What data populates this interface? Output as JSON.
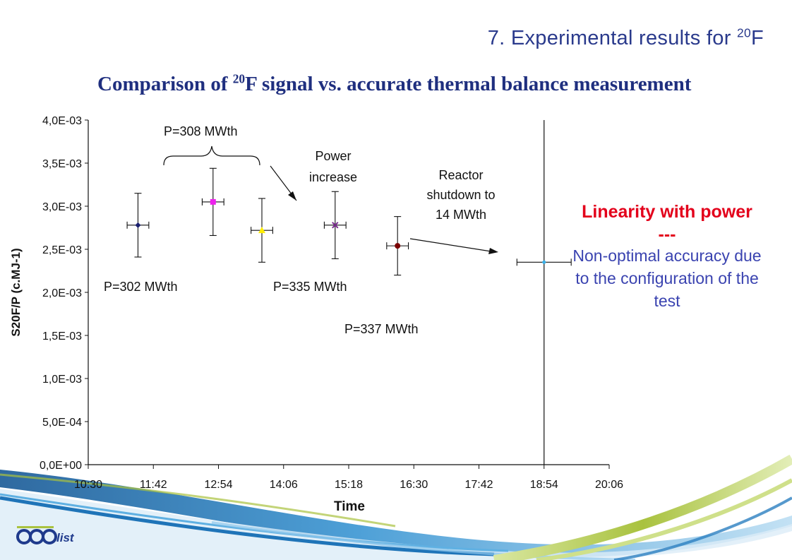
{
  "slide": {
    "title_main": "7. Experimental results for ",
    "title_sup": "20",
    "title_end": "F",
    "subtitle_pre": "Comparison of ",
    "subtitle_sup": "20",
    "subtitle_post": "F signal vs. accurate thermal balance measurement"
  },
  "side_note": {
    "heading": "Linearity with power",
    "separator": "---",
    "body": "Non-optimal accuracy due to the configuration of the test"
  },
  "colors": {
    "title": "#2a3a8c",
    "highlight": "#e3001b",
    "note_text": "#3a43b0",
    "swoosh_blue": "#1f74b8",
    "swoosh_green": "#a9c23f"
  },
  "logo": {
    "text": "cea list"
  },
  "chart_data": {
    "type": "scatter",
    "xlabel": "Time",
    "ylabel": "S20F/P (c.MJ-1)",
    "x_ticks": [
      "10:30",
      "11:42",
      "12:54",
      "14:06",
      "15:18",
      "16:30",
      "17:42",
      "18:54",
      "20:06"
    ],
    "y_ticks": [
      "0,0E+00",
      "5,0E-04",
      "1,0E-03",
      "1,5E-03",
      "2,0E-03",
      "2,5E-03",
      "3,0E-03",
      "3,5E-03",
      "4,0E-03"
    ],
    "xlim": [
      "10:30",
      "20:06"
    ],
    "ylim": [
      0,
      0.004
    ],
    "grid": false,
    "points": [
      {
        "x": "11:25",
        "y": 0.00278,
        "y_err": 0.00037,
        "x_err_min": 12,
        "marker": "diamond",
        "color": "#1a1f6e"
      },
      {
        "x": "12:48",
        "y": 0.00305,
        "y_err": 0.00039,
        "x_err_min": 12,
        "marker": "square",
        "color": "#ee22ee"
      },
      {
        "x": "13:42",
        "y": 0.00272,
        "y_err": 0.00037,
        "x_err_min": 12,
        "marker": "triangle",
        "color": "#ffee00"
      },
      {
        "x": "15:03",
        "y": 0.00278,
        "y_err": 0.00039,
        "x_err_min": 12,
        "marker": "x",
        "color": "#7a2a8f"
      },
      {
        "x": "16:12",
        "y": 0.00254,
        "y_err": 0.00034,
        "x_err_min": 12,
        "marker": "circle",
        "color": "#7a0000"
      },
      {
        "x": "18:54",
        "y": 0.00235,
        "y_err": 0.0,
        "x_err_min": 30,
        "marker": "star",
        "color": "#3ab0e8"
      }
    ],
    "vertical_line_x": "18:54",
    "annotations": [
      "P=308 MWth",
      "Power increase",
      "Reactor shutdown to 14 MWth",
      "P=302 MWth",
      "P=335 MWth",
      "P=337 MWth"
    ]
  }
}
